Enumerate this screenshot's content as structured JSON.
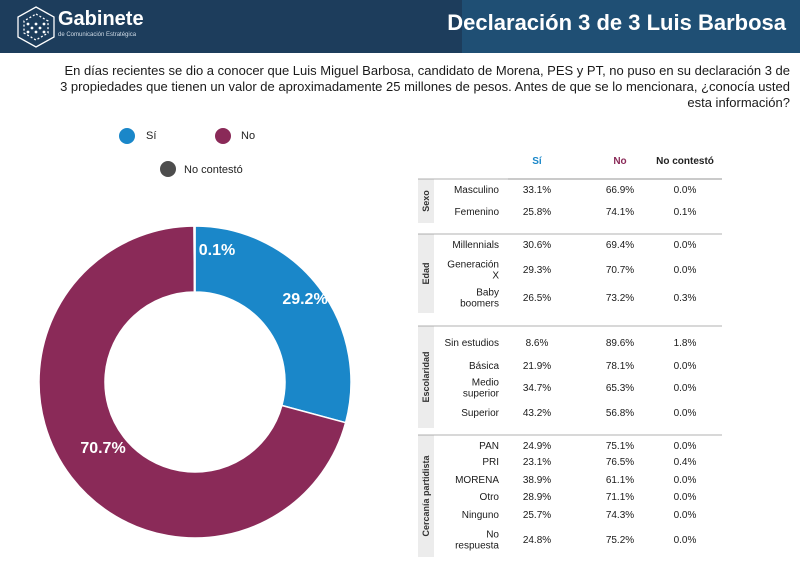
{
  "header": {
    "logo_name": "Gabinete",
    "logo_subtitle": "de Comunicación Estratégica",
    "title": "Declaración 3 de 3 Luis Barbosa"
  },
  "question": "En días recientes se dio a conocer que Luis Miguel Barbosa, candidato de Morena, PES y PT, no puso en su declaración 3 de 3 propiedades que tienen un valor de aproximadamente 25 millones de pesos. Antes de que se lo mencionara, ¿conocía usted esta información?",
  "legend": [
    {
      "label": "Sí",
      "color": "#1a87c9"
    },
    {
      "label": "No",
      "color": "#8a2a58"
    },
    {
      "label": "No contestó",
      "color": "#4d4d4d"
    }
  ],
  "chart_data": {
    "type": "pie",
    "donut": true,
    "slices": [
      {
        "label": "Sí",
        "value": 29.2,
        "display": "29.2%",
        "color": "#1a87c9"
      },
      {
        "label": "No",
        "value": 70.7,
        "display": "70.7%",
        "color": "#8a2a58"
      },
      {
        "label": "No contestó",
        "value": 0.1,
        "display": "0.1%",
        "color": "#4d4d4d"
      }
    ]
  },
  "table": {
    "headers": [
      "Sí",
      "No",
      "No contestó"
    ],
    "header_colors": [
      "#1a87c9",
      "#8a2a58",
      "#222222"
    ],
    "groups": [
      {
        "name": "Sexo",
        "rows": [
          {
            "label": [
              "Masculino"
            ],
            "si": "33.1%",
            "no": "66.9%",
            "nc": "0.0%"
          },
          {
            "label": [
              "Femenino"
            ],
            "si": "25.8%",
            "no": "74.1%",
            "nc": "0.1%"
          }
        ]
      },
      {
        "name": "Edad",
        "rows": [
          {
            "label": [
              "Millennials"
            ],
            "si": "30.6%",
            "no": "69.4%",
            "nc": "0.0%"
          },
          {
            "label": [
              "Generación",
              "X"
            ],
            "si": "29.3%",
            "no": "70.7%",
            "nc": "0.0%"
          },
          {
            "label": [
              "Baby",
              "boomers"
            ],
            "si": "26.5%",
            "no": "73.2%",
            "nc": "0.3%"
          }
        ]
      },
      {
        "name": "Escolaridad",
        "rows": [
          {
            "label": [
              "Sin estudios"
            ],
            "si": "8.6%",
            "no": "89.6%",
            "nc": "1.8%"
          },
          {
            "label": [
              "Básica"
            ],
            "si": "21.9%",
            "no": "78.1%",
            "nc": "0.0%"
          },
          {
            "label": [
              "Medio",
              "superior"
            ],
            "si": "34.7%",
            "no": "65.3%",
            "nc": "0.0%"
          },
          {
            "label": [
              "Superior"
            ],
            "si": "43.2%",
            "no": "56.8%",
            "nc": "0.0%"
          }
        ]
      },
      {
        "name": "Cercanía partidista",
        "rows": [
          {
            "label": [
              "PAN"
            ],
            "si": "24.9%",
            "no": "75.1%",
            "nc": "0.0%"
          },
          {
            "label": [
              "PRI"
            ],
            "si": "23.1%",
            "no": "76.5%",
            "nc": "0.4%"
          },
          {
            "label": [
              "MORENA"
            ],
            "si": "38.9%",
            "no": "61.1%",
            "nc": "0.0%"
          },
          {
            "label": [
              "Otro"
            ],
            "si": "28.9%",
            "no": "71.1%",
            "nc": "0.0%"
          },
          {
            "label": [
              "Ninguno"
            ],
            "si": "25.7%",
            "no": "74.3%",
            "nc": "0.0%"
          },
          {
            "label": [
              "No",
              "respuesta"
            ],
            "si": "24.8%",
            "no": "75.2%",
            "nc": "0.0%"
          }
        ]
      }
    ]
  }
}
